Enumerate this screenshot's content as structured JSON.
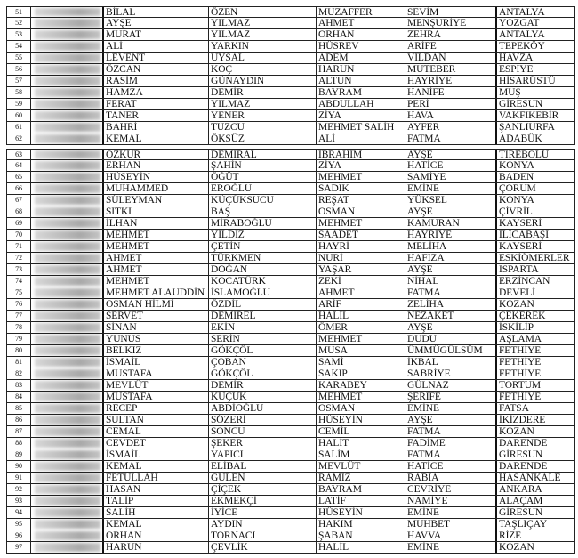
{
  "blocks": [
    {
      "rows": [
        [
          "51",
          "BİLAL",
          "ÖZEN",
          "MUZAFFER",
          "SEVİM",
          "ANTALYA"
        ],
        [
          "52",
          "AYŞE",
          "YILMAZ",
          "AHMET",
          "MENŞURİYE",
          "YOZGAT"
        ],
        [
          "53",
          "MURAT",
          "YILMAZ",
          "ORHAN",
          "ZEHRA",
          "ANTALYA"
        ],
        [
          "54",
          "ALİ",
          "YARKIN",
          "HÜSREV",
          "ARİFE",
          "TEPEKÖY"
        ],
        [
          "55",
          "LEVENT",
          "UYSAL",
          "ADEM",
          "VİLDAN",
          "HAVZA"
        ],
        [
          "56",
          "ÖZCAN",
          "KOÇ",
          "HARUN",
          "MUTEBER",
          "ESPİYE"
        ],
        [
          "57",
          "RASİM",
          "GÜNAYDIN",
          "ALTUN",
          "HAYRİYE",
          "HİSARÜSTÜ"
        ],
        [
          "58",
          "HAMZA",
          "DEMİR",
          "BAYRAM",
          "HANİFE",
          "MUŞ"
        ],
        [
          "59",
          "FERAT",
          "YILMAZ",
          "ABDULLAH",
          "PERİ",
          "GİRESUN"
        ],
        [
          "60",
          "TANER",
          "YENER",
          "ZİYA",
          "HAVA",
          "VAKFIKEBİR"
        ],
        [
          "61",
          "BAHRİ",
          "TUZCU",
          "MEHMET SALİH",
          "AYFER",
          "ŞANLIURFA"
        ],
        [
          "62",
          "KEMAL",
          "ÖKSÜZ",
          "ALİ",
          "FATMA",
          "ADABÜK"
        ]
      ]
    },
    {
      "rows": [
        [
          "63",
          "ÖZKÜR",
          "DEMİRAL",
          "İBRAHİM",
          "AYŞE",
          "TİREBOLU"
        ],
        [
          "64",
          "ERHAN",
          "ŞAHİN",
          "ZİYA",
          "HATİCE",
          "KONYA"
        ],
        [
          "65",
          "HÜSEYİN",
          "ÖĞÜT",
          "MEHMET",
          "SAMİYE",
          "BADEN"
        ],
        [
          "66",
          "MUHAMMED",
          "EROĞLU",
          "SADIK",
          "EMİNE",
          "ÇORUM"
        ],
        [
          "67",
          "SÜLEYMAN",
          "KÜÇÜKSUCU",
          "REŞAT",
          "YÜKSEL",
          "KONYA"
        ],
        [
          "68",
          "SITKI",
          "BAŞ",
          "OSMAN",
          "AYŞE",
          "ÇİVRİL"
        ],
        [
          "69",
          "İLHAN",
          "MİRABOĞLU",
          "MEHMET",
          "KAMURAN",
          "KAYSERİ"
        ],
        [
          "70",
          "MEHMET",
          "YILDIZ",
          "SAADET",
          "HAYRİYE",
          "ILICABAŞI"
        ],
        [
          "71",
          "MEHMET",
          "ÇETİN",
          "HAYRİ",
          "MELİHA",
          "KAYSERİ"
        ],
        [
          "72",
          "AHMET",
          "TÜRKMEN",
          "NURİ",
          "HAFIZA",
          "ESKİÖMERLER"
        ],
        [
          "73",
          "AHMET",
          "DOĞAN",
          "YAŞAR",
          "AYŞE",
          "ISPARTA"
        ],
        [
          "74",
          "MEHMET",
          "KOCATÜRK",
          "ZEKİ",
          "NİHAL",
          "ERZİNCAN"
        ],
        [
          "75",
          "MEHMET ALAUDDİN",
          "İSLAMOĞLU",
          "AHMET",
          "FATMA",
          "DEVELİ"
        ],
        [
          "76",
          "OSMAN HİLMİ",
          "ÖZDİL",
          "ARİF",
          "ZELİHA",
          "KOZAN"
        ],
        [
          "77",
          "SERVET",
          "DEMİREL",
          "HALİL",
          "NEZAKET",
          "ÇEKEREK"
        ],
        [
          "78",
          "SİNAN",
          "EKİN",
          "ÖMER",
          "AYŞE",
          "İSKİLİP"
        ],
        [
          "79",
          "YUNUS",
          "SERİN",
          "MEHMET",
          "DUDU",
          "AŞLAMA"
        ],
        [
          "80",
          "BELKIZ",
          "GÖKÇÖL",
          "MUSA",
          "ÜMMÜGÜLSÜM",
          "FETHİYE"
        ],
        [
          "81",
          "İSMAİL",
          "ÇOBAN",
          "SAMİ",
          "İKBAL",
          "FETHİYE"
        ],
        [
          "82",
          "MUSTAFA",
          "GÖKÇÖL",
          "SAKIP",
          "SABRİYE",
          "FETHİYE"
        ],
        [
          "83",
          "MEVLÜT",
          "DEMİR",
          "KARABEY",
          "GÜLNAZ",
          "TORTUM"
        ],
        [
          "84",
          "MUSTAFA",
          "KÜÇÜK",
          "MEHMET",
          "ŞERİFE",
          "FETHİYE"
        ],
        [
          "85",
          "RECEP",
          "ABDİOĞLU",
          "OSMAN",
          "EMİNE",
          "FATSA"
        ],
        [
          "86",
          "SULTAN",
          "SÖZERİ",
          "HÜSEYİN",
          "AYŞE",
          "İKİZDERE"
        ],
        [
          "87",
          "CEMAL",
          "SONCU",
          "CEMİL",
          "FATMA",
          "KOZAN"
        ],
        [
          "88",
          "CEVDET",
          "ŞEKER",
          "HALİT",
          "FADİME",
          "DARENDE"
        ],
        [
          "89",
          "İSMAİL",
          "YAPICI",
          "SALİM",
          "FATMA",
          "GİRESUN"
        ],
        [
          "90",
          "KEMAL",
          "ELİBAL",
          "MEVLÜT",
          "HATİCE",
          "DARENDE"
        ],
        [
          "91",
          "FETULLAH",
          "GÜLEN",
          "RAMİZ",
          "RABİA",
          "HASANKALE"
        ],
        [
          "92",
          "HASAN",
          "ÇİÇEK",
          "BAYRAM",
          "CEVRİYE",
          "ANKARA"
        ],
        [
          "93",
          "TALİP",
          "EKMEKÇİ",
          "LATİF",
          "NAMİYE",
          "ALAÇAM"
        ],
        [
          "94",
          "SALİH",
          "İYİCE",
          "HÜSEYİN",
          "EMİNE",
          "GİRESUN"
        ],
        [
          "95",
          "KEMAL",
          "AYDIN",
          "HAKIM",
          "MUHBET",
          "TAŞLIÇAY"
        ],
        [
          "96",
          "ORHAN",
          "TORNACI",
          "ŞABAN",
          "HAVVA",
          "RİZE"
        ],
        [
          "97",
          "HARUN",
          "ÇEVLİK",
          "HALİL",
          "EMİNE",
          "KOZAN"
        ]
      ]
    }
  ]
}
